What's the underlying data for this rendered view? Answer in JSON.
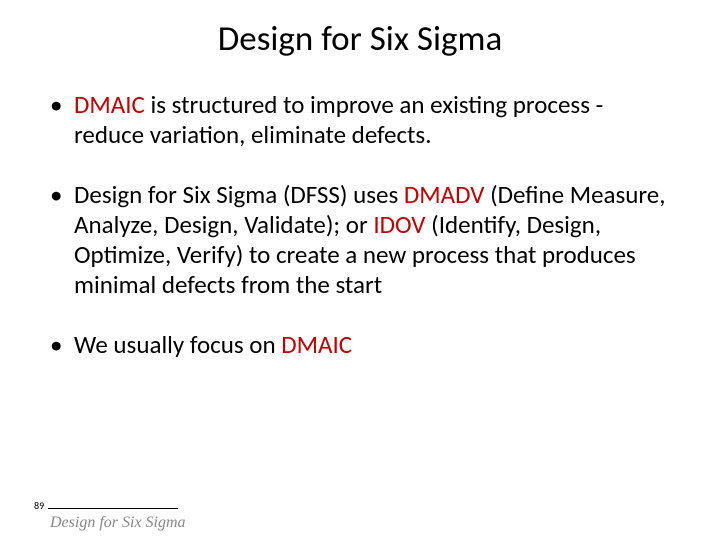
{
  "title": "Design for Six Sigma",
  "bullets": [
    {
      "pre": "",
      "h1": "DMAIC",
      "mid1": " is structured to improve an existing process - reduce variation, eliminate defects.",
      "h2": "",
      "mid2": "",
      "h3": "",
      "post": ""
    },
    {
      "pre": "Design for Six Sigma (DFSS) uses ",
      "h1": "DMADV",
      "mid1": " (Define Measure, Analyze, Design, Validate); or ",
      "h2": "IDOV",
      "mid2": " (Identify, Design, Optimize, Verify) to create a new process that produces minimal defects from the start",
      "h3": "",
      "post": ""
    },
    {
      "pre": "We usually focus on ",
      "h1": "DMAIC",
      "mid1": "",
      "h2": "",
      "mid2": "",
      "h3": "",
      "post": ""
    }
  ],
  "page_number": "89",
  "footer": "Design for Six Sigma",
  "colors": {
    "highlight": "#c00000",
    "text": "#000000",
    "footer": "#888888",
    "background": "#ffffff"
  },
  "typography": {
    "title_fontsize": 35,
    "bullet_fontsize": 25,
    "pagenum_fontsize": 10,
    "footer_fontsize": 16
  }
}
